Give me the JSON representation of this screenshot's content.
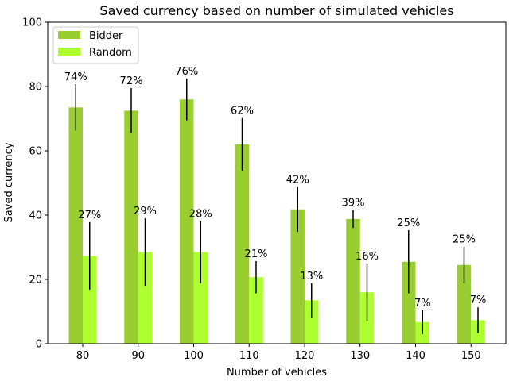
{
  "chart_data": {
    "type": "bar",
    "title": "Saved currency based on number of simulated vehicles",
    "xlabel": "Number of vehicles",
    "ylabel": "Saved currency",
    "categories": [
      "80",
      "90",
      "100",
      "110",
      "120",
      "130",
      "140",
      "150"
    ],
    "ylim": [
      0,
      100
    ],
    "yticks": [
      "0",
      "20",
      "40",
      "60",
      "80",
      "100"
    ],
    "legend_position": "top-left",
    "series": [
      {
        "name": "Bidder",
        "color": "#9acd32",
        "values": [
          73.5,
          72.5,
          76,
          62,
          41.8,
          38.8,
          25.5,
          24.5
        ],
        "errors": [
          7.2,
          7,
          6.5,
          8.2,
          7,
          2.8,
          9.8,
          5.7
        ],
        "labels": [
          "74%",
          "72%",
          "76%",
          "62%",
          "42%",
          "39%",
          "25%",
          "25%"
        ]
      },
      {
        "name": "Random",
        "color": "#adff2f",
        "values": [
          27.3,
          28.5,
          28.5,
          20.7,
          13.5,
          16,
          6.7,
          7.3
        ],
        "errors": [
          10.5,
          10.5,
          9.7,
          5,
          5.3,
          9,
          3.7,
          4
        ],
        "labels": [
          "27%",
          "29%",
          "28%",
          "21%",
          "13%",
          "16%",
          "7%",
          "7%"
        ]
      }
    ]
  }
}
